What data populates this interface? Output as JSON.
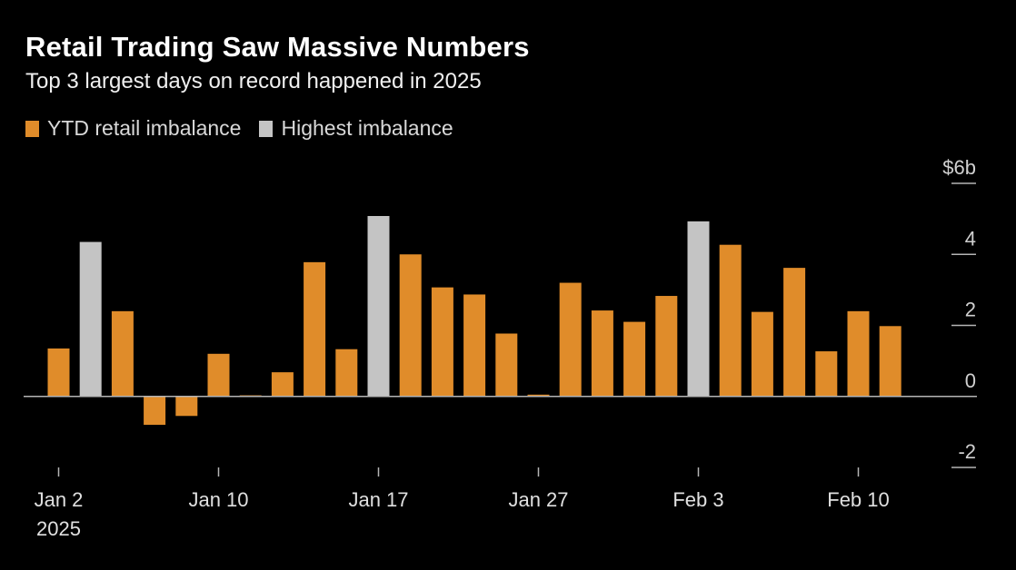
{
  "chart_data": {
    "type": "bar",
    "title": "Retail Trading Saw Massive Numbers",
    "subtitle": "Top 3 largest days on record happened in 2025",
    "legend": [
      {
        "label": "YTD retail imbalance",
        "color": "#e08c2a"
      },
      {
        "label": "Highest imbalance",
        "color": "#c4c4c4"
      }
    ],
    "ylabel_unit": "$",
    "ylim": [
      -2,
      6
    ],
    "y_ticks": [
      {
        "value": 6,
        "label": "6b"
      },
      {
        "value": 4,
        "label": "4"
      },
      {
        "value": 2,
        "label": "2"
      },
      {
        "value": 0,
        "label": "0"
      },
      {
        "value": -2,
        "label": "-2"
      }
    ],
    "x_ticks": [
      {
        "index": 0,
        "label": "Jan 2",
        "sublabel": "2025"
      },
      {
        "index": 5,
        "label": "Jan 10"
      },
      {
        "index": 10,
        "label": "Jan 17"
      },
      {
        "index": 15,
        "label": "Jan 27"
      },
      {
        "index": 20,
        "label": "Feb 3"
      },
      {
        "index": 25,
        "label": "Feb 10"
      }
    ],
    "values": [
      1.35,
      4.35,
      2.4,
      -0.8,
      -0.55,
      1.2,
      0.03,
      0.68,
      3.78,
      1.33,
      5.08,
      4.0,
      3.07,
      2.87,
      1.77,
      0.05,
      3.2,
      2.42,
      2.1,
      2.83,
      4.93,
      4.27,
      2.38,
      3.62,
      1.27,
      2.4,
      1.98
    ],
    "highlight": [
      false,
      true,
      false,
      false,
      false,
      false,
      false,
      false,
      false,
      false,
      true,
      false,
      false,
      false,
      false,
      false,
      false,
      false,
      false,
      false,
      true,
      false,
      false,
      false,
      false,
      false,
      false
    ],
    "colors": {
      "bar": "#e08c2a",
      "highlight": "#c4c4c4",
      "axis": "#b5b5b5",
      "tick_text": "#d0d0d0",
      "label_text": "#e0e0e0"
    }
  }
}
